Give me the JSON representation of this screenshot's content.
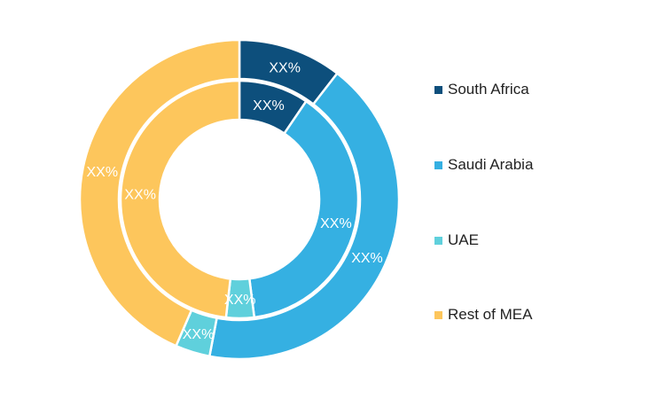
{
  "chart_data": {
    "type": "pie",
    "variant": "double-donut",
    "categories": [
      "South Africa",
      "Saudi Arabia",
      "UAE",
      "Rest of MEA"
    ],
    "colors": [
      "#0d4f7c",
      "#35b0e2",
      "#5fd0dc",
      "#fdc65c"
    ],
    "series": [
      {
        "ring": "outer",
        "values": [
          10.5,
          42.5,
          3.5,
          43.5
        ],
        "labels": [
          "XX%",
          "XX%",
          "XX%",
          "XX%"
        ]
      },
      {
        "ring": "inner",
        "values": [
          9.5,
          38.5,
          3.8,
          48.2
        ],
        "labels": [
          "XX%",
          "XX%",
          "XX%",
          "XX%"
        ]
      }
    ],
    "legend": {
      "position": "right",
      "items": [
        {
          "label": "South Africa",
          "color": "#0d4f7c"
        },
        {
          "label": "Saudi Arabia",
          "color": "#35b0e2"
        },
        {
          "label": "UAE",
          "color": "#5fd0dc"
        },
        {
          "label": "Rest of MEA",
          "color": "#fdc65c"
        }
      ]
    }
  }
}
